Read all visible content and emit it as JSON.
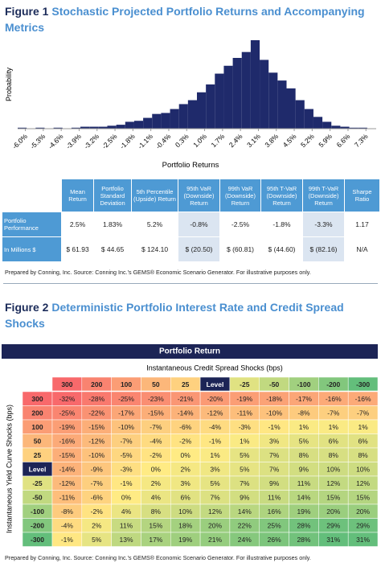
{
  "figure1": {
    "label": "Figure 1",
    "title": "Stochastic Projected Portfolio Returns and Accompanying Metrics"
  },
  "chart_data": {
    "type": "histogram",
    "ylabel": "Probability",
    "xlabel": "Portfolio Returns",
    "color": "#1f2a6b",
    "bins": [
      -6.3,
      -5.95,
      -5.6,
      -5.25,
      -4.9,
      -4.55,
      -4.2,
      -3.85,
      -3.5,
      -3.15,
      -2.8,
      -2.45,
      -2.1,
      -1.75,
      -1.4,
      -1.05,
      -0.7,
      -0.35,
      0,
      0.35,
      0.7,
      1.05,
      1.4,
      1.75,
      2.1,
      2.45,
      2.8,
      3.15,
      3.5,
      3.85,
      4.2,
      4.55,
      4.9,
      5.25,
      5.6,
      5.95,
      6.3,
      6.65,
      7,
      7.35,
      7.7
    ],
    "values": [
      0.1,
      0,
      0.1,
      0,
      0.1,
      0,
      0.1,
      0.2,
      0.2,
      0.2,
      0.3,
      0.4,
      0.7,
      0.8,
      1.1,
      1.5,
      1.6,
      2.0,
      2.5,
      2.9,
      3.7,
      4.5,
      5.6,
      6.4,
      7.2,
      7.8,
      9.0,
      7.0,
      5.7,
      4.9,
      4.1,
      2.9,
      2.0,
      1.2,
      0.7,
      0.3,
      0.2,
      0.1,
      0.1,
      0
    ],
    "xlim": [
      -6.3,
      7.7
    ],
    "ylim": [
      0,
      9
    ],
    "xticks": [
      {
        "value": -6.0,
        "label": "-6.0%"
      },
      {
        "value": -5.3,
        "label": "-5.3%"
      },
      {
        "value": -4.6,
        "label": "-4.6%"
      },
      {
        "value": -3.9,
        "label": "-3.9%"
      },
      {
        "value": -3.2,
        "label": "-3.2%"
      },
      {
        "value": -2.5,
        "label": "-2.5%"
      },
      {
        "value": -1.8,
        "label": "-1.8%"
      },
      {
        "value": -1.1,
        "label": "-1.1%"
      },
      {
        "value": -0.4,
        "label": "-0.4%"
      },
      {
        "value": 0.3,
        "label": "0.3%"
      },
      {
        "value": 1.0,
        "label": "1.0%"
      },
      {
        "value": 1.7,
        "label": "1.7%"
      },
      {
        "value": 2.4,
        "label": "2.4%"
      },
      {
        "value": 3.1,
        "label": "3.1%"
      },
      {
        "value": 3.8,
        "label": "3.8%"
      },
      {
        "value": 4.5,
        "label": "4.5%"
      },
      {
        "value": 5.2,
        "label": "5.2%"
      },
      {
        "value": 5.9,
        "label": "5.9%"
      },
      {
        "value": 6.6,
        "label": "6.6%"
      },
      {
        "value": 7.3,
        "label": "7.3%"
      }
    ]
  },
  "metrics_table": {
    "headers": [
      "Mean Return",
      "Portfolio Standard Deviation",
      "5th Percentile (Upside) Return",
      "95th VaR (Downside) Return",
      "99th VaR (Downside) Return",
      "95th T-VaR (Downside) Return",
      "99th T-VaR (Downside) Return",
      "Sharpe Ratio"
    ],
    "rows": [
      {
        "label": "Portfolio Performance",
        "cells": [
          "2.5%",
          "1.83%",
          "5.2%",
          "-0.8%",
          "-2.5%",
          "-1.8%",
          "-3.3%",
          "1.17"
        ]
      },
      {
        "label": "In Millions $",
        "cells": [
          "$ 61.93",
          "$ 44.65",
          "$ 124.10",
          "$ (20.50)",
          "$ (60.81)",
          "$ (44.60)",
          "$ (82.16)",
          "N/A"
        ]
      }
    ]
  },
  "note1": "Prepared by Conning, Inc. Source: Conning Inc.'s GEMS® Economic Scenario Generator. For illustrative purposes only.",
  "figure2": {
    "label": "Figure 2",
    "title": "Deterministic Portfolio Interest Rate and Credit Spread Shocks"
  },
  "heatmap": {
    "title": "Portfolio Return",
    "col_axis": "Instantaneous Credit Spread Shocks (bps)",
    "row_axis": "Instantaneous Yield Curve Shocks (bps)",
    "columns": [
      "300",
      "200",
      "100",
      "50",
      "25",
      "Level",
      "-25",
      "-50",
      "-100",
      "-200",
      "-300"
    ],
    "rows": [
      {
        "label": "300",
        "cells": [
          "-32%",
          "-28%",
          "-25%",
          "-23%",
          "-21%",
          "-20%",
          "-19%",
          "-18%",
          "-17%",
          "-16%",
          "-16%"
        ]
      },
      {
        "label": "200",
        "cells": [
          "-25%",
          "-22%",
          "-17%",
          "-15%",
          "-14%",
          "-12%",
          "-11%",
          "-10%",
          "-8%",
          "-7%",
          "-7%"
        ]
      },
      {
        "label": "100",
        "cells": [
          "-19%",
          "-15%",
          "-10%",
          "-7%",
          "-6%",
          "-4%",
          "-3%",
          "-1%",
          "1%",
          "1%",
          "1%"
        ]
      },
      {
        "label": "50",
        "cells": [
          "-16%",
          "-12%",
          "-7%",
          "-4%",
          "-2%",
          "-1%",
          "1%",
          "3%",
          "5%",
          "6%",
          "6%"
        ]
      },
      {
        "label": "25",
        "cells": [
          "-15%",
          "-10%",
          "-5%",
          "-2%",
          "0%",
          "1%",
          "5%",
          "7%",
          "8%",
          "8%",
          "8%"
        ]
      },
      {
        "label": "Level",
        "cells": [
          "-14%",
          "-9%",
          "-3%",
          "0%",
          "2%",
          "3%",
          "5%",
          "7%",
          "9%",
          "10%",
          "10%"
        ]
      },
      {
        "label": "-25",
        "cells": [
          "-12%",
          "-7%",
          "-1%",
          "2%",
          "3%",
          "5%",
          "7%",
          "9%",
          "11%",
          "12%",
          "12%"
        ]
      },
      {
        "label": "-50",
        "cells": [
          "-11%",
          "-6%",
          "0%",
          "4%",
          "6%",
          "7%",
          "9%",
          "11%",
          "14%",
          "15%",
          "15%"
        ]
      },
      {
        "label": "-100",
        "cells": [
          "-8%",
          "-2%",
          "4%",
          "8%",
          "10%",
          "12%",
          "14%",
          "16%",
          "19%",
          "20%",
          "20%"
        ]
      },
      {
        "label": "-200",
        "cells": [
          "-4%",
          "2%",
          "11%",
          "15%",
          "18%",
          "20%",
          "22%",
          "25%",
          "28%",
          "29%",
          "29%"
        ]
      },
      {
        "label": "-300",
        "cells": [
          "-1%",
          "5%",
          "13%",
          "17%",
          "19%",
          "21%",
          "24%",
          "26%",
          "28%",
          "31%",
          "31%"
        ]
      }
    ]
  },
  "note2": "Prepared by Conning, Inc. Source: Conning Inc.'s GEMS® Economic Scenario Generator. For illustrative purposes only."
}
